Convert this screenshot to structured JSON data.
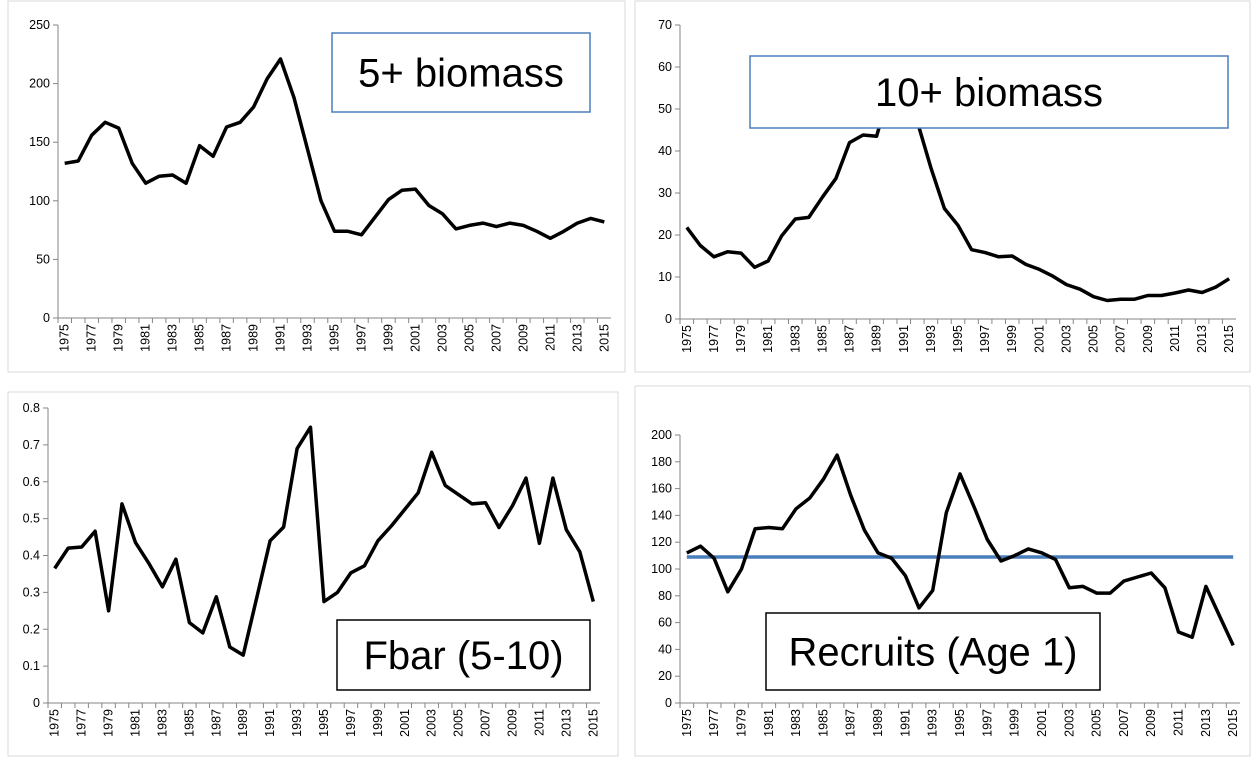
{
  "chart_data": [
    {
      "type": "line",
      "annotation": "5+ biomass",
      "annotation_border": "#4a7ebb",
      "color": "#000000",
      "categories": [
        "1975",
        null,
        "1977",
        null,
        "1979",
        null,
        "1981",
        null,
        "1983",
        null,
        "1985",
        null,
        "1987",
        null,
        "1989",
        null,
        "1991",
        null,
        "1993",
        null,
        "1995",
        null,
        "1997",
        null,
        "1999",
        null,
        "2001",
        null,
        "2003",
        null,
        "2005",
        null,
        "2007",
        null,
        "2009",
        null,
        "2011",
        null,
        "2013",
        null,
        "2015"
      ],
      "values": [
        132,
        134,
        156,
        167,
        162,
        132,
        115,
        121,
        122,
        115,
        147,
        138,
        163,
        167,
        180,
        204,
        221,
        188,
        144,
        100,
        74,
        74,
        71,
        86,
        101,
        109,
        110,
        96,
        89,
        76,
        79,
        81,
        78,
        81,
        79,
        74,
        68,
        74,
        81,
        85,
        82
      ],
      "ylim": [
        0,
        250
      ],
      "yticks": [
        0,
        50,
        100,
        150,
        200,
        250
      ]
    },
    {
      "type": "line",
      "annotation": "10+ biomass",
      "annotation_border": "#4a7ebb",
      "color": "#000000",
      "categories": [
        "1975",
        null,
        "1977",
        null,
        "1979",
        null,
        "1981",
        null,
        "1983",
        null,
        "1985",
        null,
        "1987",
        null,
        "1989",
        null,
        "1991",
        null,
        "1993",
        null,
        "1995",
        null,
        "1997",
        null,
        "1999",
        null,
        "2001",
        null,
        "2003",
        null,
        "2005",
        null,
        "2007",
        null,
        "2009",
        null,
        "2011",
        null,
        "2013",
        null,
        "2015"
      ],
      "values": [
        21.8,
        17.5,
        14.8,
        16,
        15.7,
        12.3,
        13.8,
        19.8,
        23.8,
        24.2,
        29,
        33.5,
        42,
        43.8,
        43.5,
        55,
        62,
        47,
        36,
        26.3,
        22.3,
        16.5,
        15.8,
        14.8,
        15,
        13,
        11.8,
        10.2,
        8.2,
        7.1,
        5.3,
        4.4,
        4.7,
        4.7,
        5.6,
        5.6,
        6.2,
        6.9,
        6.3,
        7.6,
        9.6
      ],
      "ylim": [
        0,
        70
      ],
      "yticks": [
        0,
        10,
        20,
        30,
        40,
        50,
        60,
        70
      ]
    },
    {
      "type": "line",
      "annotation": "Fbar (5-10)",
      "annotation_border": "#000000",
      "color": "#000000",
      "categories": [
        "1975",
        null,
        "1977",
        null,
        "1979",
        null,
        "1981",
        null,
        "1983",
        null,
        "1985",
        null,
        "1987",
        null,
        "1989",
        null,
        "1991",
        null,
        "1993",
        null,
        "1995",
        null,
        "1997",
        null,
        "1999",
        null,
        "2001",
        null,
        "2003",
        null,
        "2005",
        null,
        "2007",
        null,
        "2009",
        null,
        "2011",
        null,
        "2013",
        null,
        "2015"
      ],
      "values": [
        0.365,
        0.42,
        0.423,
        0.466,
        0.25,
        0.54,
        0.435,
        0.378,
        0.315,
        0.39,
        0.218,
        0.19,
        0.288,
        0.152,
        0.13,
        0.285,
        0.44,
        0.477,
        0.69,
        0.748,
        0.275,
        0.3,
        0.353,
        0.372,
        0.44,
        0.48,
        0.525,
        0.57,
        0.68,
        0.59,
        0.565,
        0.54,
        0.543,
        0.476,
        0.535,
        0.61,
        0.433,
        0.61,
        0.47,
        0.41,
        0.275
      ],
      "ylim": [
        0,
        0.8
      ],
      "yticks": [
        0,
        0.1,
        0.2,
        0.3,
        0.4,
        0.5,
        0.6,
        0.7,
        0.8
      ]
    },
    {
      "type": "line",
      "annotation": "Recruits (Age 1)",
      "annotation_border": "#000000",
      "color": "#000000",
      "categories": [
        "1975",
        null,
        "1977",
        null,
        "1979",
        null,
        "1981",
        null,
        "1983",
        null,
        "1985",
        null,
        "1987",
        null,
        "1989",
        null,
        "1991",
        null,
        "1993",
        null,
        "1995",
        null,
        "1997",
        null,
        "1999",
        null,
        "2001",
        null,
        "2003",
        null,
        "2005",
        null,
        "2007",
        null,
        "2009",
        null,
        "2011",
        null,
        "2013",
        null,
        "2015"
      ],
      "values": [
        112,
        117,
        108,
        83,
        100,
        130,
        131,
        130,
        145,
        153,
        167,
        185,
        155,
        129,
        112,
        108,
        95,
        71,
        84,
        142,
        171,
        147,
        122,
        106,
        110,
        115,
        112,
        107,
        86,
        87,
        82,
        82,
        91,
        94,
        97,
        86,
        53,
        49,
        87,
        65,
        43
      ],
      "reference_value": 109,
      "reference_color": "#4a7ebb",
      "ylim": [
        0,
        200
      ],
      "yticks": [
        0,
        20,
        40,
        60,
        80,
        100,
        120,
        140,
        160,
        180,
        200
      ]
    }
  ]
}
